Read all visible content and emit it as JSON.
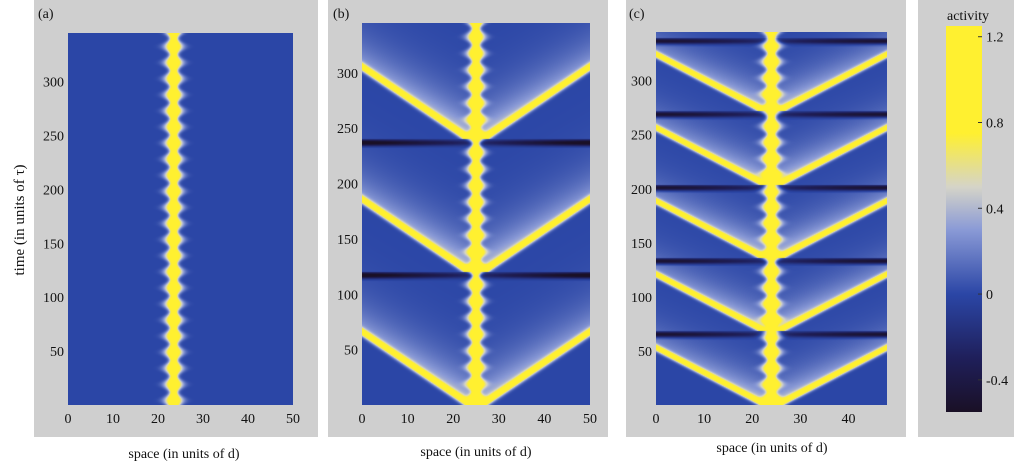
{
  "figure": {
    "y_axis_label": "time (in units of τ)"
  },
  "colorbar": {
    "title": "activity",
    "ticks": [
      -0.4,
      0,
      0.4,
      0.8,
      1.2
    ],
    "tick_labels": [
      "-0.4",
      "0",
      "0.4",
      "0.8",
      "1.2"
    ],
    "range": [
      -0.55,
      1.25
    ],
    "colors": {
      "min": "#1a1026",
      "dark": "#1f1f5a",
      "baseline": "#2b46a6",
      "mid": "#8a9ad6",
      "light": "#d5d4c8",
      "max": "#fff030"
    }
  },
  "chart_data": [
    {
      "type": "heatmap",
      "panel_label": "(a)",
      "xlabel": "space (in units of d)",
      "xlim": [
        0,
        50
      ],
      "ylim": [
        0,
        345
      ],
      "x_ticks": [
        0,
        10,
        20,
        30,
        40,
        50
      ],
      "x_tick_labels": [
        "0",
        "10",
        "20",
        "30",
        "40",
        "50"
      ],
      "y_ticks": [
        50,
        100,
        150,
        200,
        250,
        300
      ],
      "y_tick_labels": [
        "50",
        "100",
        "150",
        "200",
        "250",
        "300"
      ],
      "pattern": "stationary localized bump",
      "bump_center_x": 23.5,
      "wave_emission_times": [],
      "peak_activity": 1.2,
      "background_activity": 0.0
    },
    {
      "type": "heatmap",
      "panel_label": "(b)",
      "xlabel": "space (in units of d)",
      "xlim": [
        0,
        50
      ],
      "ylim": [
        0,
        345
      ],
      "x_ticks": [
        0,
        10,
        20,
        30,
        40,
        50
      ],
      "x_tick_labels": [
        "0",
        "10",
        "20",
        "30",
        "40",
        "50"
      ],
      "y_ticks": [
        50,
        100,
        150,
        200,
        250,
        300
      ],
      "y_tick_labels": [
        "50",
        "100",
        "150",
        "200",
        "250",
        "300"
      ],
      "pattern": "bump emitting periodic traveling wave pairs",
      "bump_center_x": 25,
      "wave_emission_times": [
        0,
        120,
        240
      ],
      "peak_activity": 1.2,
      "background_activity": 0.0
    },
    {
      "type": "heatmap",
      "panel_label": "(c)",
      "xlabel": "space (in units of d)",
      "xlim": [
        0,
        48
      ],
      "ylim": [
        0,
        345
      ],
      "x_ticks": [
        0,
        10,
        20,
        30,
        40
      ],
      "x_tick_labels": [
        "0",
        "10",
        "20",
        "30",
        "40"
      ],
      "y_ticks": [
        50,
        100,
        150,
        200,
        250,
        300
      ],
      "y_tick_labels": [
        "50",
        "100",
        "150",
        "200",
        "250",
        "300"
      ],
      "pattern": "bump emitting frequent traveling wave pairs",
      "bump_center_x": 24,
      "wave_emission_times": [
        0,
        68,
        136,
        204,
        272
      ],
      "peak_activity": 1.2,
      "background_activity": 0.0
    }
  ]
}
